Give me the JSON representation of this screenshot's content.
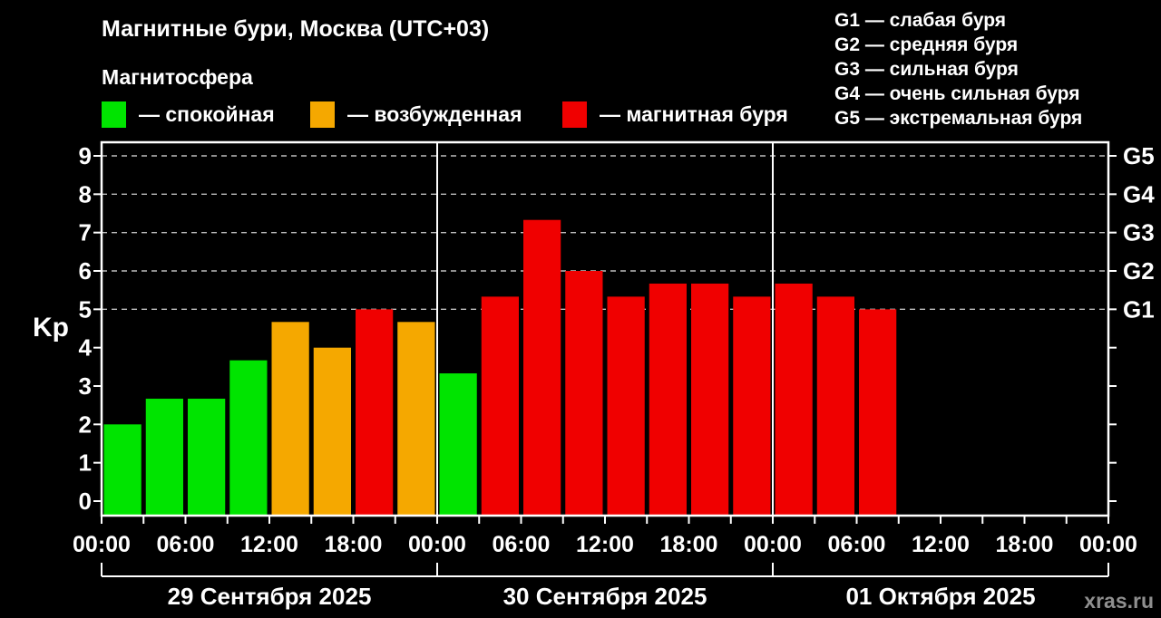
{
  "header": {
    "title": "Магнитные бури, Москва (UTC+03)",
    "subtitle": "Магнитосфера"
  },
  "legend": {
    "items": [
      {
        "key": "quiet",
        "label": "— спокойная",
        "color": "#00E400"
      },
      {
        "key": "excited",
        "label": "— возбужденная",
        "color": "#F5A800"
      },
      {
        "key": "storm",
        "label": "— магнитная буря",
        "color": "#F00000"
      }
    ]
  },
  "storm_scale": {
    "items": [
      "G1 — слабая буря",
      "G2 — средняя буря",
      "G3 — сильная буря",
      "G4 — очень сильная буря",
      "G5 — экстремальная буря"
    ]
  },
  "footer": {
    "watermark": "xras.ru"
  },
  "chart_data": {
    "type": "bar",
    "title": "Магнитные бури, Москва (UTC+03)",
    "ylabel": "Kp",
    "xlabel": "",
    "ylim": [
      0,
      9
    ],
    "yticks": [
      0,
      1,
      2,
      3,
      4,
      5,
      6,
      7,
      8,
      9
    ],
    "grid": "dashed horizontal lines at Kp 5..9 only",
    "legend_position": "top",
    "bar_interval_hours": 3,
    "time_labels": [
      "00:00",
      "06:00",
      "12:00",
      "18:00"
    ],
    "right_axis_labels": [
      {
        "kp": 5,
        "label": "G1"
      },
      {
        "kp": 6,
        "label": "G2"
      },
      {
        "kp": 7,
        "label": "G3"
      },
      {
        "kp": 8,
        "label": "G4"
      },
      {
        "kp": 9,
        "label": "G5"
      }
    ],
    "colors": {
      "quiet": "#00E400",
      "excited": "#F5A800",
      "storm": "#F00000"
    },
    "color_thresholds": {
      "quiet_below": 4,
      "storm_from": 5
    },
    "days": [
      {
        "date": "29 Сентября 2025",
        "kp": [
          2.0,
          2.67,
          2.67,
          3.67,
          4.67,
          4.0,
          5.0,
          4.67
        ]
      },
      {
        "date": "30 Сентября 2025",
        "kp": [
          3.33,
          5.33,
          7.33,
          6.0,
          5.33,
          5.67,
          5.67,
          5.33
        ]
      },
      {
        "date": "01 Октября 2025",
        "kp": [
          5.67,
          5.33,
          5.0,
          null,
          null,
          null,
          null,
          null
        ]
      }
    ]
  }
}
